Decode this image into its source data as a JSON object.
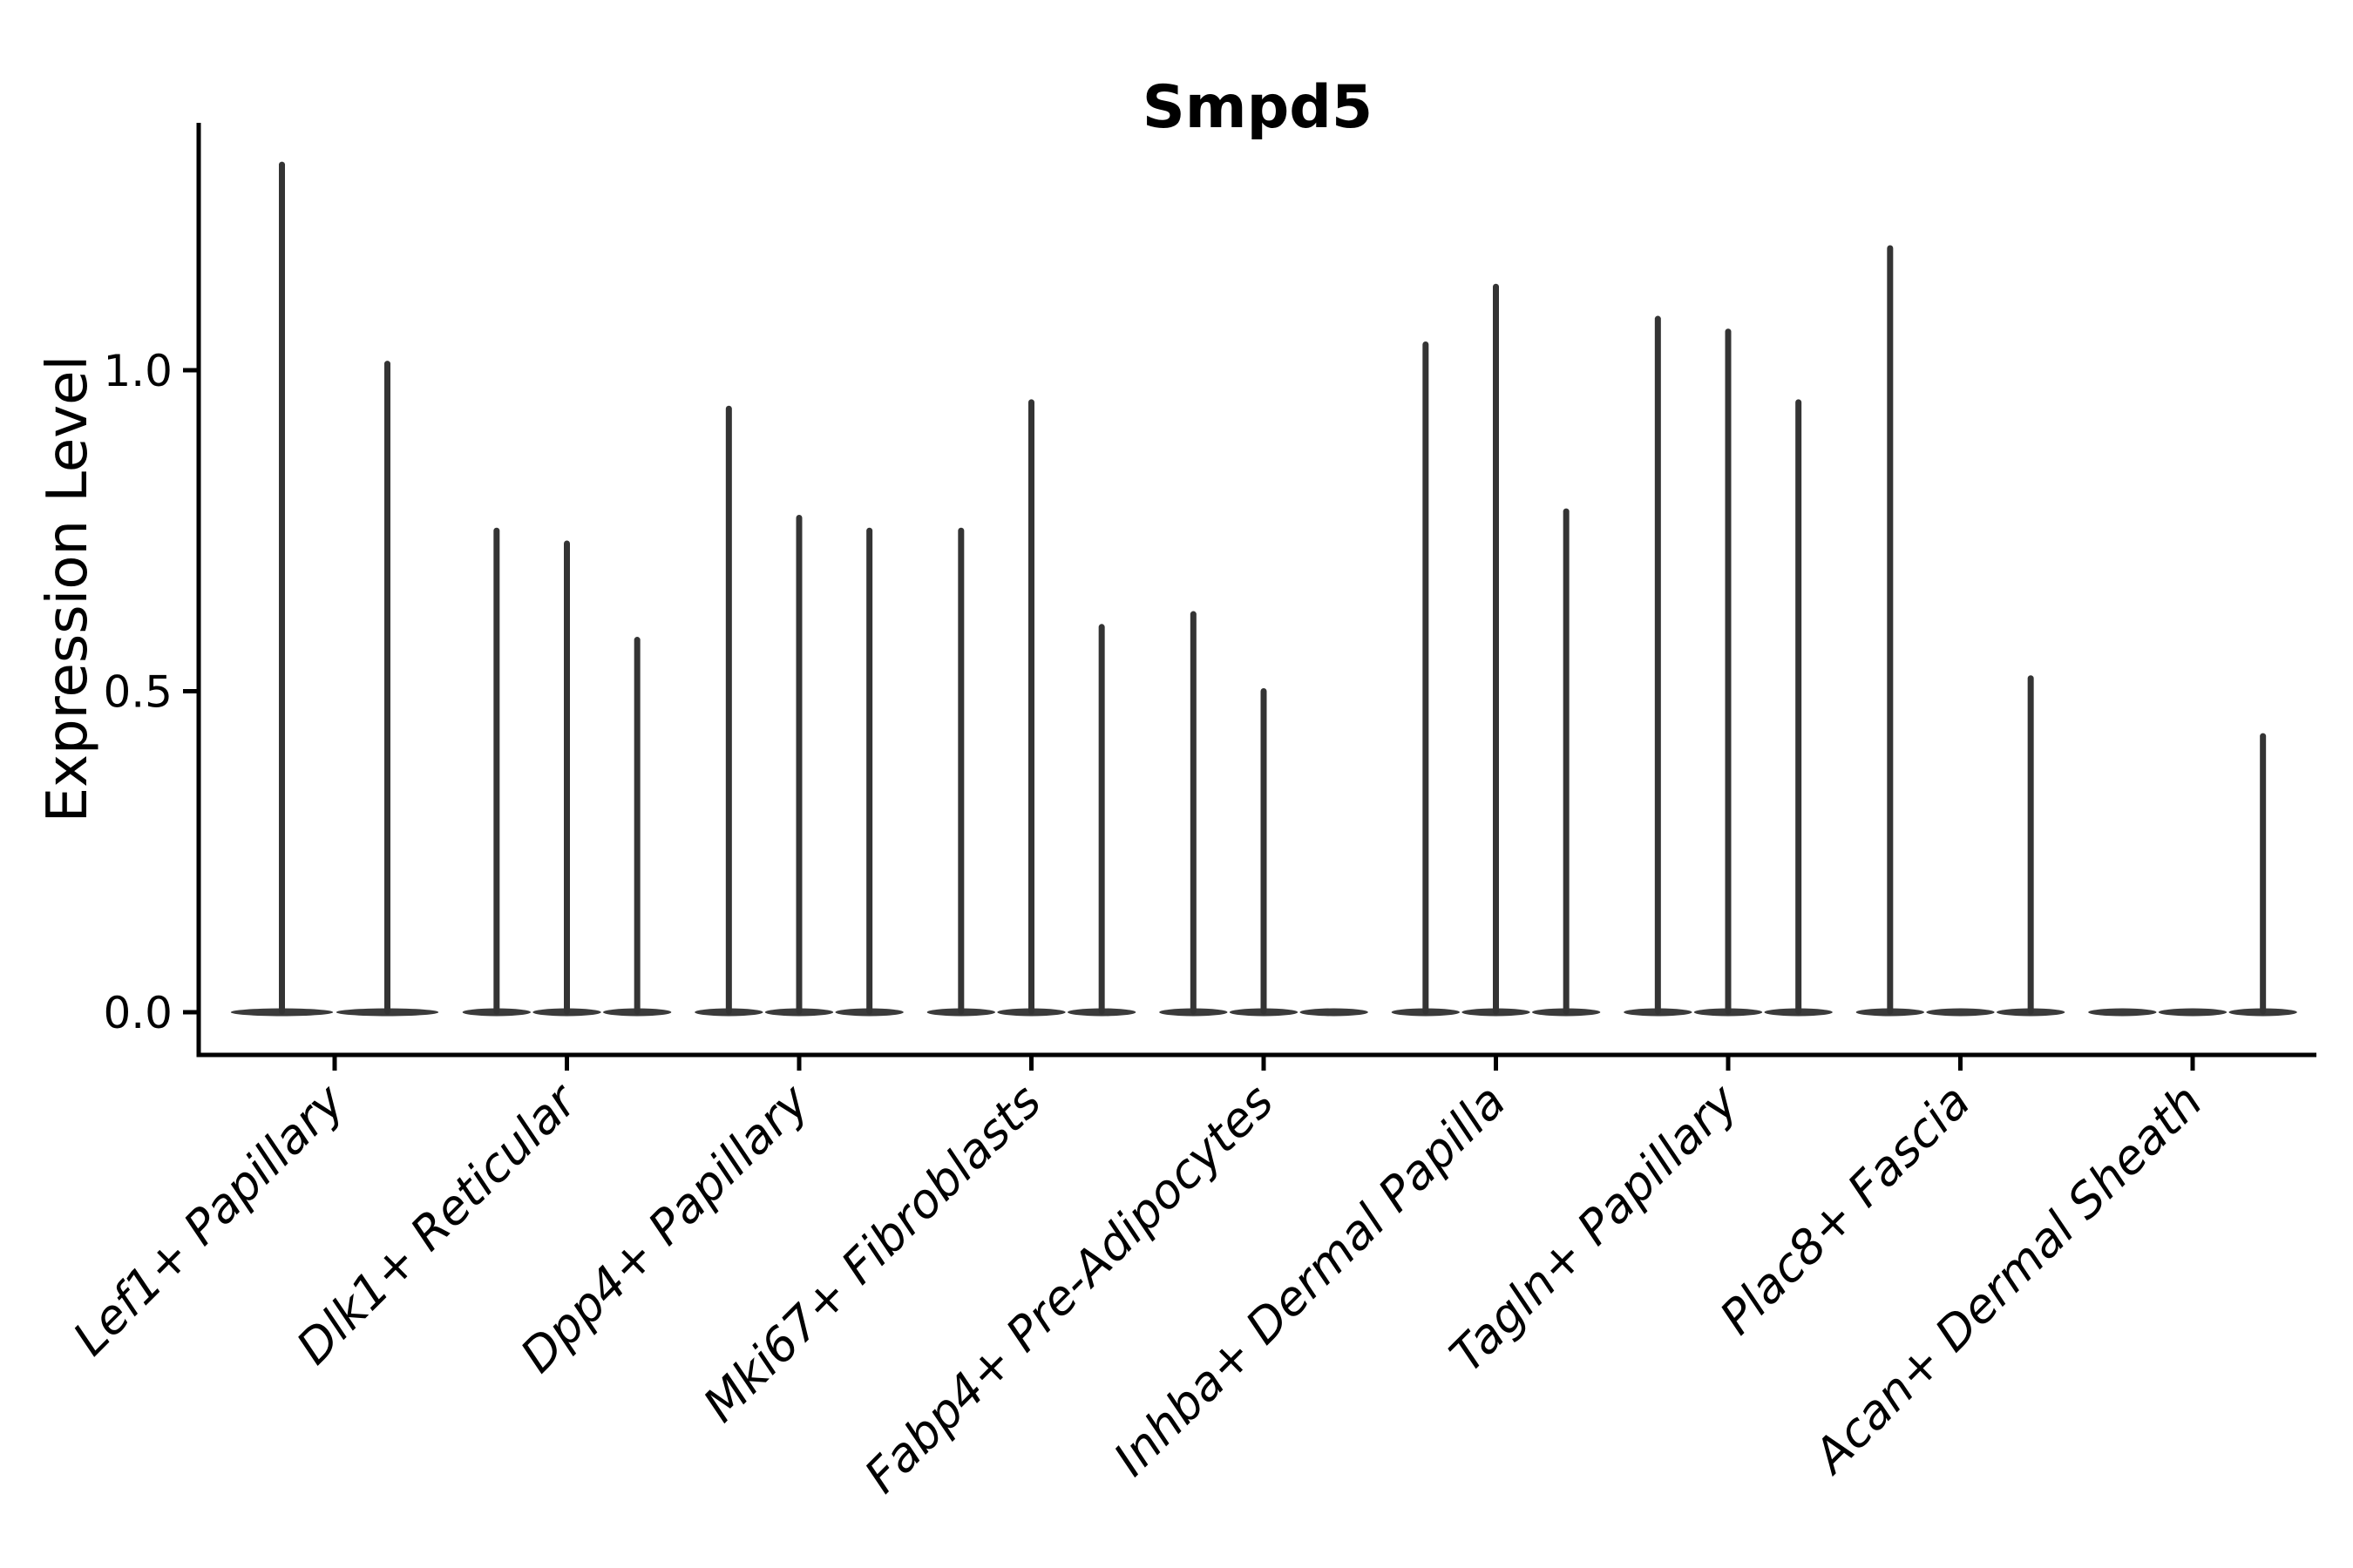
{
  "title": "Smpd5",
  "ylabel": "Expression Level",
  "chart_data": {
    "type": "violin",
    "title": "Smpd5",
    "xlabel": "",
    "ylabel": "Expression Level",
    "ylim": [
      -0.07,
      1.39
    ],
    "ytick_values": [
      0.0,
      0.5,
      1.0
    ],
    "ytick_labels": [
      "0.0",
      "0.5",
      "1.0"
    ],
    "grid": false,
    "legend": false,
    "categories": [
      "Lef1+ Papillary",
      "Dlk1+ Reticular",
      "Dpp4+ Papillary",
      "Mki67+ Fibroblasts",
      "Fabp4+ Pre-Adipocytes",
      "Inhba+ Dermal Papilla",
      "Tagln+ Papillary",
      "Plac8+ Fascia",
      "Acan+ Dermal Sheath"
    ],
    "groups": [
      {
        "category": "Lef1+ Papillary",
        "violin_maxima": [
          1.32,
          1.01
        ]
      },
      {
        "category": "Dlk1+ Reticular",
        "violin_maxima": [
          0.75,
          0.73,
          0.58
        ]
      },
      {
        "category": "Dpp4+ Papillary",
        "violin_maxima": [
          0.94,
          0.77,
          0.75
        ]
      },
      {
        "category": "Mki67+ Fibroblasts",
        "violin_maxima": [
          0.75,
          0.95,
          0.6
        ]
      },
      {
        "category": "Fabp4+ Pre-Adipocytes",
        "violin_maxima": [
          0.62,
          0.5,
          0.0
        ]
      },
      {
        "category": "Inhba+ Dermal Papilla",
        "violin_maxima": [
          1.04,
          1.13,
          0.78
        ]
      },
      {
        "category": "Tagln+ Papillary",
        "violin_maxima": [
          1.08,
          1.06,
          0.95
        ]
      },
      {
        "category": "Plac8+ Fascia",
        "violin_maxima": [
          1.19,
          0.0,
          0.52
        ]
      },
      {
        "category": "Acan+ Dermal Sheath",
        "violin_maxima": [
          0.0,
          0.0,
          0.43
        ]
      }
    ],
    "colors": {
      "violin_base": "#3b3b3b",
      "violin_spike": "#343434",
      "axis": "#000000",
      "text": "#000000",
      "background": "#ffffff"
    }
  }
}
